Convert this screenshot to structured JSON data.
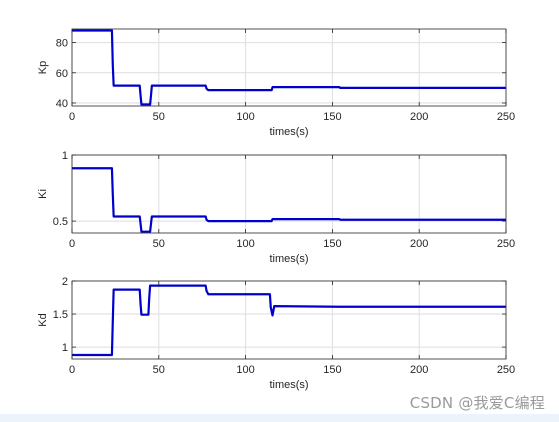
{
  "chart_data": [
    {
      "type": "line",
      "xlabel": "times(s)",
      "ylabel": "Kp",
      "xlim": [
        0,
        250
      ],
      "ylim": [
        38,
        89
      ],
      "xticks": [
        0,
        50,
        100,
        150,
        200,
        250
      ],
      "yticks": [
        40,
        60,
        80
      ],
      "grid": true,
      "color": "#0000cc",
      "series": [
        {
          "x": [
            0,
            23,
            23.5,
            24,
            39,
            39.5,
            40,
            45,
            45.5,
            46,
            77,
            77.5,
            78.5,
            115,
            115.5,
            154,
            154.5,
            250
          ],
          "y": [
            88,
            88,
            65,
            51.5,
            51.5,
            45,
            39,
            39,
            45,
            51.5,
            51.5,
            49.5,
            48.5,
            48.5,
            50.5,
            50.5,
            50,
            50
          ]
        }
      ]
    },
    {
      "type": "line",
      "xlabel": "times(s)",
      "ylabel": "Ki",
      "xlim": [
        0,
        250
      ],
      "ylim": [
        0.41,
        1.0
      ],
      "xticks": [
        0,
        50,
        100,
        150,
        200,
        250
      ],
      "yticks": [
        0.5,
        1
      ],
      "grid": true,
      "color": "#0000cc",
      "series": [
        {
          "x": [
            0,
            23,
            23.5,
            24,
            39,
            39.5,
            40,
            45,
            45.5,
            46,
            77,
            77.5,
            78.5,
            115,
            115.5,
            154,
            154.5,
            250
          ],
          "y": [
            0.9,
            0.9,
            0.7,
            0.535,
            0.535,
            0.48,
            0.42,
            0.42,
            0.48,
            0.535,
            0.535,
            0.51,
            0.5,
            0.5,
            0.515,
            0.515,
            0.51,
            0.51
          ]
        }
      ]
    },
    {
      "type": "line",
      "xlabel": "times(s)",
      "ylabel": "Kd",
      "xlim": [
        0,
        250
      ],
      "ylim": [
        0.82,
        2.0
      ],
      "xticks": [
        0,
        50,
        100,
        150,
        200,
        250
      ],
      "yticks": [
        1,
        1.5,
        2
      ],
      "grid": true,
      "color": "#0000cc",
      "series": [
        {
          "x": [
            0,
            23,
            23.5,
            24,
            39,
            39.5,
            40,
            44,
            44.5,
            45,
            77,
            77.5,
            78.5,
            114,
            114.5,
            115.5,
            116.5,
            154,
            250
          ],
          "y": [
            0.88,
            0.88,
            1.4,
            1.87,
            1.87,
            1.65,
            1.49,
            1.49,
            1.75,
            1.93,
            1.93,
            1.85,
            1.8,
            1.8,
            1.6,
            1.48,
            1.62,
            1.61,
            1.61
          ]
        }
      ]
    }
  ],
  "watermark": "CSDN @我爱C编程"
}
